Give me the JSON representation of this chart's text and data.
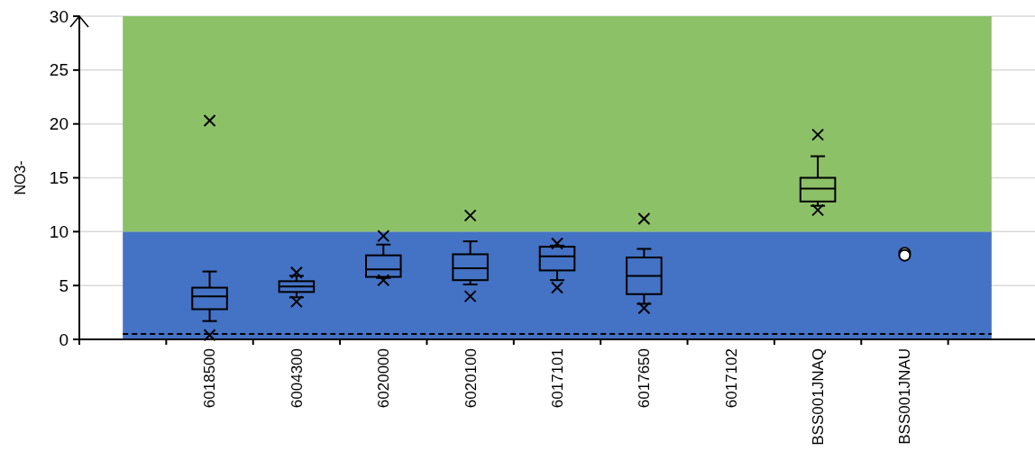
{
  "chart_data": {
    "type": "box",
    "ylabel": "NO3-",
    "categories": [
      null,
      "6018500",
      "6004300",
      "6020000",
      "6020100",
      "6017101",
      "6017650",
      "6017102",
      "BSS001JNAQ",
      "BSS001JNAU",
      null
    ],
    "boxes": [
      null,
      {
        "low": 1.7,
        "q1": 2.8,
        "median": 4.0,
        "q3": 4.8,
        "high": 6.3,
        "outliers": [
          20.3,
          0.4
        ]
      },
      {
        "low": 3.9,
        "q1": 4.4,
        "median": 4.9,
        "q3": 5.4,
        "high": 5.9,
        "outliers": [
          6.2,
          3.5
        ]
      },
      {
        "low": 5.7,
        "q1": 5.8,
        "median": 6.5,
        "q3": 7.8,
        "high": 8.8,
        "outliers": [
          9.6,
          5.5
        ]
      },
      {
        "low": 5.1,
        "q1": 5.5,
        "median": 6.6,
        "q3": 7.9,
        "high": 9.1,
        "outliers": [
          11.5,
          4.0
        ]
      },
      {
        "low": 5.5,
        "q1": 6.4,
        "median": 7.7,
        "q3": 8.6,
        "high": 8.7,
        "outliers": [
          8.9,
          4.8
        ]
      },
      {
        "low": 3.3,
        "q1": 4.2,
        "median": 5.9,
        "q3": 7.6,
        "high": 8.4,
        "outliers": [
          11.2,
          2.9
        ]
      },
      null,
      {
        "low": 12.4,
        "q1": 12.8,
        "median": 14.0,
        "q3": 15.0,
        "high": 17.0,
        "outliers": [
          19.0,
          12.0
        ]
      },
      null,
      null
    ],
    "series": [
      {
        "type": "scatter",
        "marker": "circle",
        "color": "#ffffff",
        "x": [
          "BSS001JNAU",
          "BSS001JNAU"
        ],
        "values": [
          8.0,
          7.8
        ]
      }
    ],
    "ylim": [
      0,
      30
    ],
    "yticks": [
      0,
      5,
      10,
      15,
      20,
      25,
      30
    ],
    "grid": "y",
    "marker": "cross",
    "bands": [
      {
        "axis": "y",
        "from": 0,
        "to": 10,
        "color": "#4472c4"
      },
      {
        "axis": "y",
        "from": 10,
        "to": 30,
        "color": "#8cc168"
      }
    ],
    "ref_lines": [
      {
        "axis": "y",
        "value": 0.5,
        "color": "#000000",
        "line_style": "dashed"
      }
    ]
  }
}
